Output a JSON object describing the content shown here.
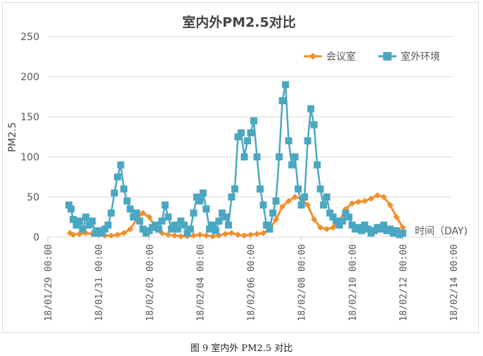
{
  "caption": "图 9 室内外 PM2.5 对比",
  "chart_data": {
    "type": "line",
    "title": "室内外PM2.5对比",
    "ylabel": "PM2.5",
    "xlabel": "时间（DAY)",
    "ylim": [
      0,
      250
    ],
    "yticks": [
      0,
      50,
      100,
      150,
      200,
      250
    ],
    "xlim": [
      "2018-01-29",
      "2018-02-14"
    ],
    "xticks": [
      "18/01/29 00:00",
      "18/01/31 00:00",
      "18/02/02 00:00",
      "18/02/04 00:00",
      "18/02/06 00:00",
      "18/02/08 00:00",
      "18/02/10 00:00",
      "18/02/12 00:00",
      "18/02/14 00:00"
    ],
    "grid": "horizontal",
    "legend_position": "top-right",
    "series": [
      {
        "name": "会议室",
        "color": "#f28e2b",
        "marker": "diamond",
        "x": [
          "2018-01-29 21:00",
          "2018-01-30 00:00",
          "2018-01-30 06:00",
          "2018-01-30 12:00",
          "2018-01-30 18:00",
          "2018-01-31 00:00",
          "2018-01-31 06:00",
          "2018-01-31 12:00",
          "2018-01-31 18:00",
          "2018-02-01 00:00",
          "2018-02-01 06:00",
          "2018-02-01 12:00",
          "2018-02-01 18:00",
          "2018-02-02 00:00",
          "2018-02-02 06:00",
          "2018-02-02 12:00",
          "2018-02-02 18:00",
          "2018-02-03 00:00",
          "2018-02-03 06:00",
          "2018-02-03 12:00",
          "2018-02-03 18:00",
          "2018-02-04 00:00",
          "2018-02-04 06:00",
          "2018-02-04 12:00",
          "2018-02-04 18:00",
          "2018-02-05 00:00",
          "2018-02-05 06:00",
          "2018-02-05 12:00",
          "2018-02-05 18:00",
          "2018-02-06 00:00",
          "2018-02-06 06:00",
          "2018-02-06 12:00",
          "2018-02-06 18:00",
          "2018-02-07 00:00",
          "2018-02-07 06:00",
          "2018-02-07 12:00",
          "2018-02-07 18:00",
          "2018-02-08 00:00",
          "2018-02-08 06:00",
          "2018-02-08 12:00",
          "2018-02-08 18:00",
          "2018-02-09 00:00",
          "2018-02-09 06:00",
          "2018-02-09 12:00",
          "2018-02-09 18:00",
          "2018-02-10 00:00",
          "2018-02-10 06:00",
          "2018-02-10 12:00",
          "2018-02-10 18:00",
          "2018-02-11 00:00",
          "2018-02-11 06:00",
          "2018-02-11 12:00",
          "2018-02-11 18:00",
          "2018-02-12 00:00"
        ],
        "y": [
          5,
          3,
          4,
          5,
          4,
          3,
          2,
          2,
          3,
          5,
          10,
          22,
          30,
          25,
          12,
          5,
          3,
          2,
          1,
          1,
          2,
          3,
          2,
          1,
          2,
          4,
          5,
          3,
          2,
          3,
          4,
          5,
          10,
          22,
          38,
          45,
          50,
          48,
          40,
          22,
          12,
          10,
          12,
          20,
          35,
          42,
          44,
          45,
          48,
          52,
          50,
          40,
          25,
          12
        ]
      },
      {
        "name": "室外环境",
        "color": "#4aa7c1",
        "marker": "square",
        "x": [
          "2018-01-29 20:00",
          "2018-01-29 22:00",
          "2018-01-30 00:00",
          "2018-01-30 03:00",
          "2018-01-30 06:00",
          "2018-01-30 09:00",
          "2018-01-30 12:00",
          "2018-01-30 15:00",
          "2018-01-30 18:00",
          "2018-01-30 21:00",
          "2018-01-31 00:00",
          "2018-01-31 03:00",
          "2018-01-31 06:00",
          "2018-01-31 09:00",
          "2018-01-31 12:00",
          "2018-01-31 15:00",
          "2018-01-31 18:00",
          "2018-01-31 21:00",
          "2018-02-01 00:00",
          "2018-02-01 03:00",
          "2018-02-01 06:00",
          "2018-02-01 09:00",
          "2018-02-01 12:00",
          "2018-02-01 15:00",
          "2018-02-01 18:00",
          "2018-02-01 21:00",
          "2018-02-02 00:00",
          "2018-02-02 03:00",
          "2018-02-02 06:00",
          "2018-02-02 09:00",
          "2018-02-02 12:00",
          "2018-02-02 15:00",
          "2018-02-02 18:00",
          "2018-02-02 21:00",
          "2018-02-03 00:00",
          "2018-02-03 03:00",
          "2018-02-03 06:00",
          "2018-02-03 09:00",
          "2018-02-03 12:00",
          "2018-02-03 15:00",
          "2018-02-03 18:00",
          "2018-02-03 21:00",
          "2018-02-04 00:00",
          "2018-02-04 03:00",
          "2018-02-04 06:00",
          "2018-02-04 09:00",
          "2018-02-04 12:00",
          "2018-02-04 15:00",
          "2018-02-04 18:00",
          "2018-02-04 21:00",
          "2018-02-05 00:00",
          "2018-02-05 03:00",
          "2018-02-05 06:00",
          "2018-02-05 09:00",
          "2018-02-05 12:00",
          "2018-02-05 15:00",
          "2018-02-05 18:00",
          "2018-02-05 21:00",
          "2018-02-06 00:00",
          "2018-02-06 03:00",
          "2018-02-06 06:00",
          "2018-02-06 09:00",
          "2018-02-06 12:00",
          "2018-02-06 15:00",
          "2018-02-06 18:00",
          "2018-02-06 21:00",
          "2018-02-07 00:00",
          "2018-02-07 03:00",
          "2018-02-07 06:00",
          "2018-02-07 09:00",
          "2018-02-07 12:00",
          "2018-02-07 15:00",
          "2018-02-07 18:00",
          "2018-02-07 21:00",
          "2018-02-08 00:00",
          "2018-02-08 03:00",
          "2018-02-08 06:00",
          "2018-02-08 09:00",
          "2018-02-08 12:00",
          "2018-02-08 15:00",
          "2018-02-08 18:00",
          "2018-02-08 21:00",
          "2018-02-09 00:00",
          "2018-02-09 03:00",
          "2018-02-09 06:00",
          "2018-02-09 09:00",
          "2018-02-09 12:00",
          "2018-02-09 15:00",
          "2018-02-09 18:00",
          "2018-02-09 21:00",
          "2018-02-10 00:00",
          "2018-02-10 03:00",
          "2018-02-10 06:00",
          "2018-02-10 09:00",
          "2018-02-10 12:00",
          "2018-02-10 15:00",
          "2018-02-10 18:00",
          "2018-02-10 21:00",
          "2018-02-11 00:00",
          "2018-02-11 03:00",
          "2018-02-11 06:00",
          "2018-02-11 09:00",
          "2018-02-11 12:00",
          "2018-02-11 15:00",
          "2018-02-11 18:00",
          "2018-02-11 21:00",
          "2018-02-12 00:00"
        ],
        "y": [
          40,
          35,
          22,
          15,
          20,
          10,
          25,
          15,
          20,
          5,
          8,
          5,
          10,
          15,
          30,
          55,
          75,
          90,
          60,
          45,
          35,
          25,
          30,
          20,
          10,
          5,
          8,
          12,
          15,
          10,
          20,
          40,
          25,
          10,
          15,
          10,
          20,
          15,
          5,
          10,
          30,
          50,
          45,
          55,
          35,
          10,
          15,
          8,
          20,
          30,
          25,
          15,
          50,
          60,
          125,
          130,
          100,
          120,
          130,
          145,
          100,
          60,
          40,
          15,
          10,
          30,
          45,
          100,
          170,
          190,
          120,
          90,
          100,
          60,
          40,
          50,
          120,
          160,
          140,
          90,
          60,
          40,
          50,
          30,
          25,
          20,
          15,
          20,
          30,
          25,
          15,
          10,
          12,
          8,
          15,
          10,
          5,
          8,
          12,
          10,
          15,
          8,
          10,
          5,
          8,
          3,
          5
        ]
      }
    ]
  }
}
